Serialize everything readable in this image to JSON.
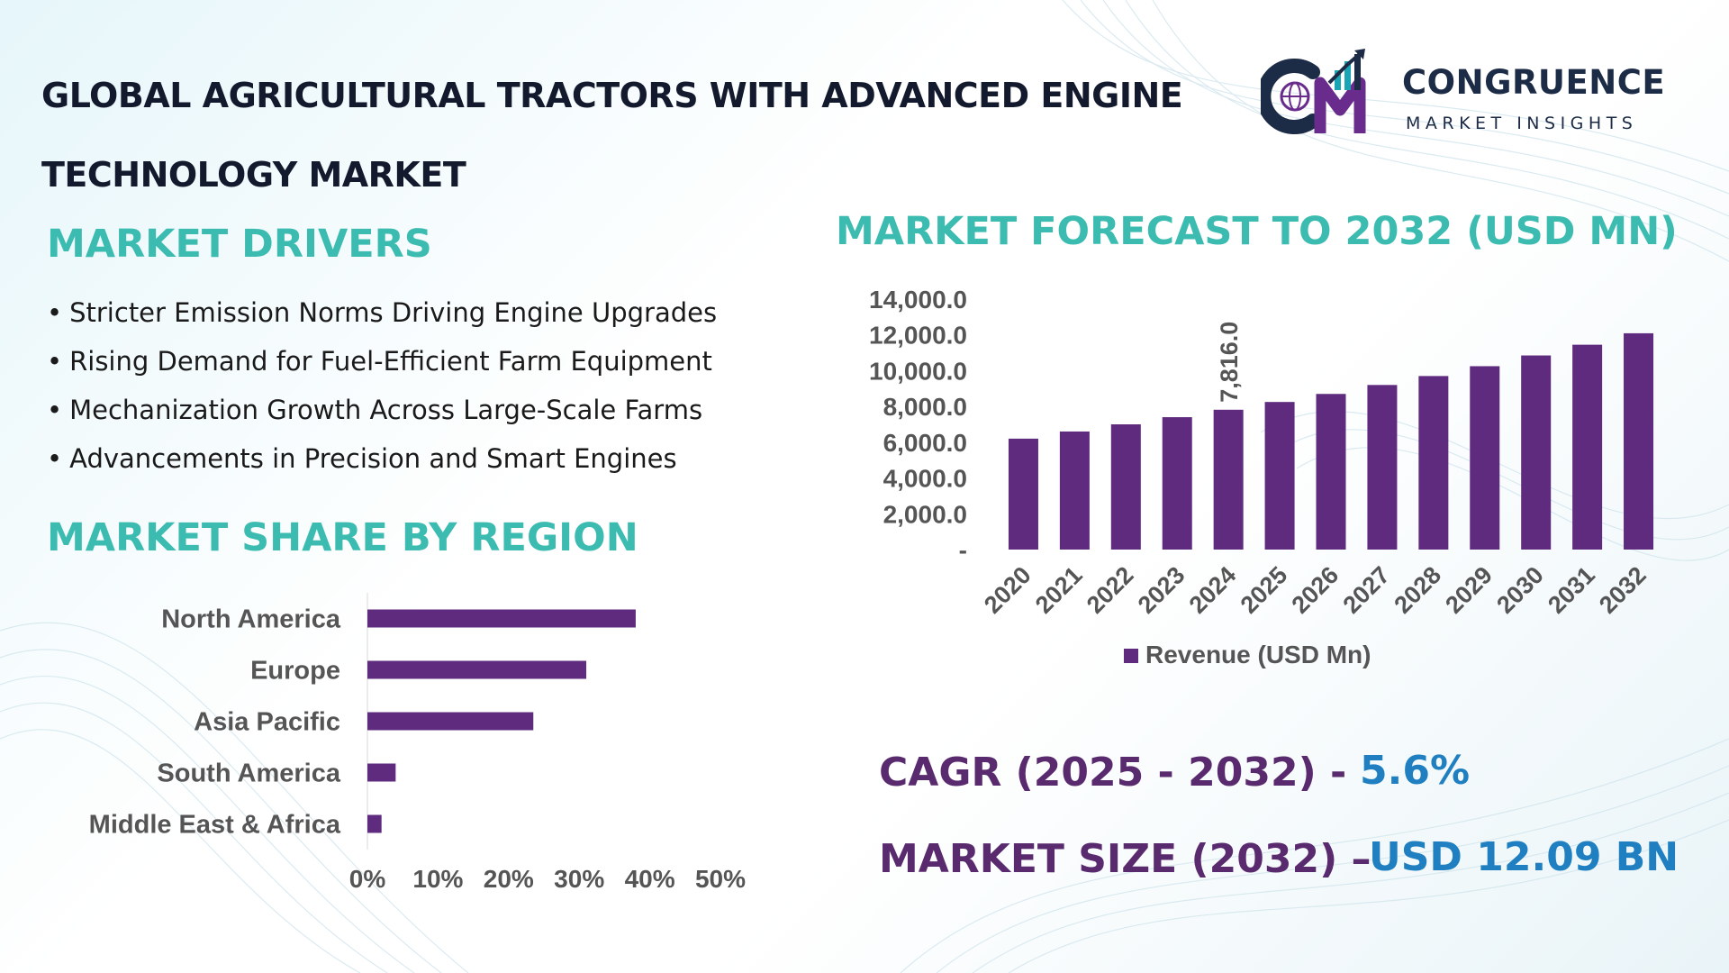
{
  "page": {
    "title": "GLOBAL AGRICULTURAL TRACTORS WITH ADVANCED ENGINE TECHNOLOGY MARKET"
  },
  "logo": {
    "name": "CONGRUENCE",
    "tagline": "MARKET INSIGHTS",
    "mark": "CM",
    "colors": {
      "navy": "#1c2b46",
      "purple": "#6a2c8c",
      "teal": "#1aa5b5"
    }
  },
  "drivers": {
    "heading": "MARKET DRIVERS",
    "bullet": "•",
    "items": [
      "Stricter Emission Norms Driving Engine Upgrades",
      "Rising Demand for Fuel-Efficient Farm Equipment",
      "Mechanization Growth Across Large-Scale Farms",
      "Advancements in Precision and Smart Engines"
    ]
  },
  "region": {
    "heading": "MARKET SHARE BY REGION"
  },
  "forecast": {
    "heading": "MARKET FORECAST TO 2032 (USD MN)"
  },
  "stats": {
    "cagr_label": "CAGR (2025 - 2032) -",
    "cagr_value": "5.6%",
    "size_label": "MARKET SIZE (2032) –",
    "size_value": "USD 12.09 BN"
  },
  "colors": {
    "heading": "#3cbcb1",
    "bar": "#5e2b7e",
    "stat_label": "#5a2a6f",
    "stat_value": "#1f7fc0",
    "axis_text": "#555555"
  },
  "chart_data": [
    {
      "type": "bar",
      "orientation": "horizontal",
      "title": "MARKET SHARE BY REGION",
      "categories": [
        "North America",
        "Europe",
        "Asia Pacific",
        "South America",
        "Middle East & Africa"
      ],
      "values": [
        38,
        31,
        23.5,
        4,
        2
      ],
      "xlim": [
        0,
        50
      ],
      "xticks": [
        "0%",
        "10%",
        "20%",
        "30%",
        "40%",
        "50%"
      ],
      "grid": false,
      "legend": "none"
    },
    {
      "type": "bar",
      "orientation": "vertical",
      "title": "MARKET FORECAST TO 2032 (USD MN)",
      "categories": [
        "2020",
        "2021",
        "2022",
        "2023",
        "2024",
        "2025",
        "2026",
        "2027",
        "2028",
        "2029",
        "2030",
        "2031",
        "2032"
      ],
      "series": [
        {
          "name": "Revenue (USD Mn)",
          "values": [
            6200,
            6600,
            7000,
            7400,
            7816,
            8250,
            8700,
            9200,
            9700,
            10250,
            10850,
            11450,
            12090
          ]
        }
      ],
      "ylim": [
        0,
        14000
      ],
      "yticks": [
        "-",
        "2,000.0",
        "4,000.0",
        "6,000.0",
        "8,000.0",
        "10,000.0",
        "12,000.0",
        "14,000.0"
      ],
      "data_labels": [
        {
          "category": "2024",
          "text": "7,816.0"
        }
      ],
      "grid": false,
      "legend": "bottom-center"
    }
  ]
}
